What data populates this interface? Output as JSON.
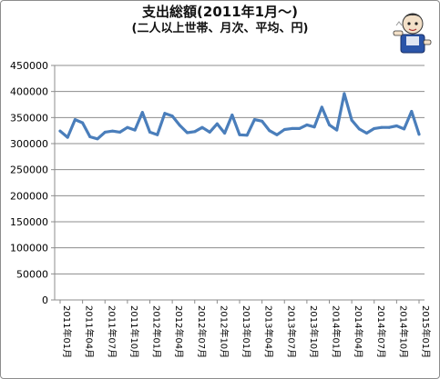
{
  "chart_data": {
    "type": "line",
    "title": "支出総額(2011年1月～)",
    "subtitle": "(二人以上世帯、月次、平均、円)",
    "ylim": [
      0,
      450000
    ],
    "y_ticks": [
      "0",
      "50000",
      "100000",
      "150000",
      "200000",
      "250000",
      "300000",
      "350000",
      "400000",
      "450000"
    ],
    "x_tick_labels": [
      "2011年01月",
      "2011年04月",
      "2011年07月",
      "2011年10月",
      "2012年01月",
      "2012年04月",
      "2012年07月",
      "2012年10月",
      "2013年01月",
      "2013年04月",
      "2013年07月",
      "2013年10月",
      "2014年01月",
      "2014年04月",
      "2014年07月",
      "2014年10月",
      "2015年01月"
    ],
    "grid": "horizontal",
    "legend": "none",
    "series": [
      {
        "color": "#4a7ebb",
        "values": [
          324000,
          312000,
          346000,
          340000,
          313000,
          309000,
          322000,
          324000,
          322000,
          331000,
          326000,
          360000,
          322000,
          317000,
          358000,
          353000,
          335000,
          321000,
          323000,
          331000,
          322000,
          338000,
          320000,
          355000,
          317000,
          316000,
          346000,
          343000,
          325000,
          317000,
          327000,
          329000,
          329000,
          336000,
          332000,
          370000,
          336000,
          326000,
          396000,
          345000,
          328000,
          320000,
          329000,
          331000,
          331000,
          334000,
          328000,
          362000,
          318000
        ]
      }
    ]
  },
  "decoration": {
    "mascot": "mascot-illustration"
  }
}
